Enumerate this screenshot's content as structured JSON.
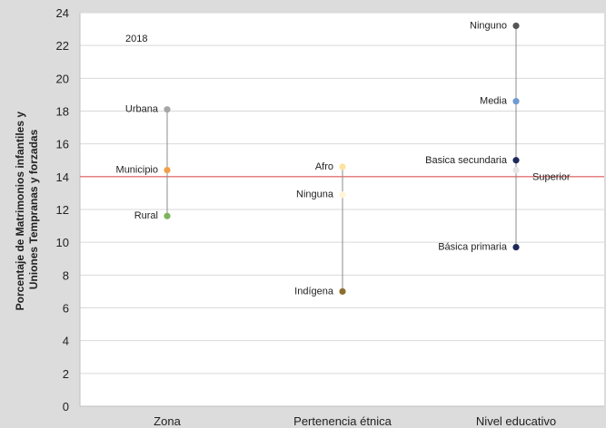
{
  "chart_data": {
    "type": "dot-range",
    "ylabel_lines": [
      "Porcentaje de Matrimonios infantiles y",
      "Uniones Tempranas y forzadas"
    ],
    "ylim": [
      0,
      24
    ],
    "yticks": [
      0,
      2,
      4,
      6,
      8,
      10,
      12,
      14,
      16,
      18,
      20,
      22,
      24
    ],
    "annotation": "2018",
    "reference_line": {
      "value": 14,
      "color": "#e05a5a"
    },
    "categories": [
      "Zona",
      "Pertenencia étnica",
      "Nivel educativo"
    ],
    "groups": [
      {
        "category": "Zona",
        "points": [
          {
            "label": "Urbana",
            "value": 18.1,
            "color": "#a6a6a6",
            "side": "left"
          },
          {
            "label": "Municipio",
            "value": 14.4,
            "color": "#f0a04b",
            "side": "left"
          },
          {
            "label": "Rural",
            "value": 11.6,
            "color": "#7fb25c",
            "side": "left"
          }
        ]
      },
      {
        "category": "Pertenencia étnica",
        "points": [
          {
            "label": "Afro",
            "value": 14.6,
            "color": "#fde2a0",
            "side": "left"
          },
          {
            "label": "Ninguna",
            "value": 12.9,
            "color": "#fff4d6",
            "side": "left"
          },
          {
            "label": "Indígena",
            "value": 7.0,
            "color": "#8b6f2f",
            "side": "left"
          }
        ]
      },
      {
        "category": "Nivel educativo",
        "points": [
          {
            "label": "Ninguno",
            "value": 23.2,
            "color": "#555555",
            "side": "left"
          },
          {
            "label": "Media",
            "value": 18.6,
            "color": "#6f9bd1",
            "side": "left"
          },
          {
            "label": "Basica secundaria",
            "value": 15.0,
            "color": "#1f2a5a",
            "side": "left"
          },
          {
            "label": "Superior",
            "value": 14.4,
            "color": "#e6e6e6",
            "side": "right"
          },
          {
            "label": "Básica primaria",
            "value": 9.7,
            "color": "#1f2a5a",
            "side": "left"
          }
        ]
      }
    ]
  }
}
